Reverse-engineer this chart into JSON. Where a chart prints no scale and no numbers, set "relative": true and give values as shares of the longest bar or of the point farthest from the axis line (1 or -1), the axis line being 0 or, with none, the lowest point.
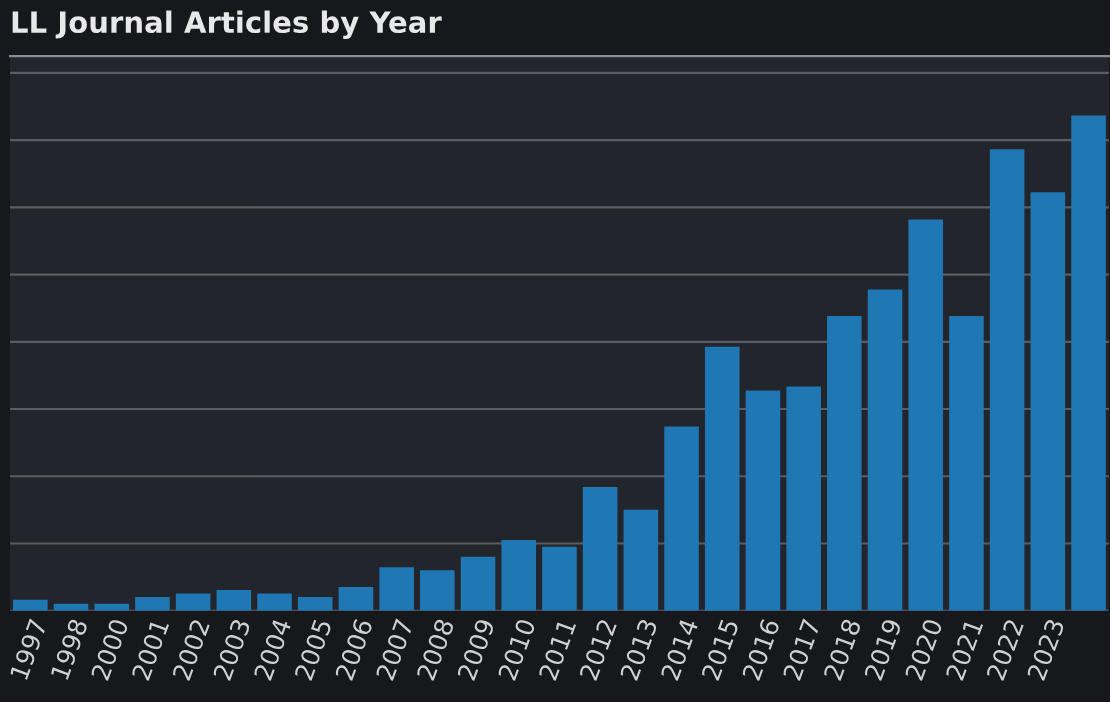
{
  "chart_data": {
    "type": "bar",
    "title": "LL Journal Articles by Year",
    "relative": true,
    "grid": "y",
    "color": "#1f77b4",
    "categories": [
      "1997",
      "1998",
      "2000",
      "2001",
      "2002",
      "2003",
      "2004",
      "2005",
      "2006",
      "2007",
      "2008",
      "2009",
      "2010",
      "2011",
      "2012",
      "2013",
      "2014",
      "2015",
      "2016",
      "2017",
      "2018",
      "2019",
      "2020",
      "2021",
      "2022",
      "2023",
      null
    ],
    "values": [
      0.022,
      0.014,
      0.014,
      0.028,
      0.035,
      0.042,
      0.035,
      0.028,
      0.048,
      0.088,
      0.082,
      0.109,
      0.143,
      0.129,
      0.25,
      0.204,
      0.372,
      0.533,
      0.445,
      0.453,
      0.595,
      0.649,
      0.79,
      0.595,
      0.932,
      0.845,
      1
    ]
  }
}
